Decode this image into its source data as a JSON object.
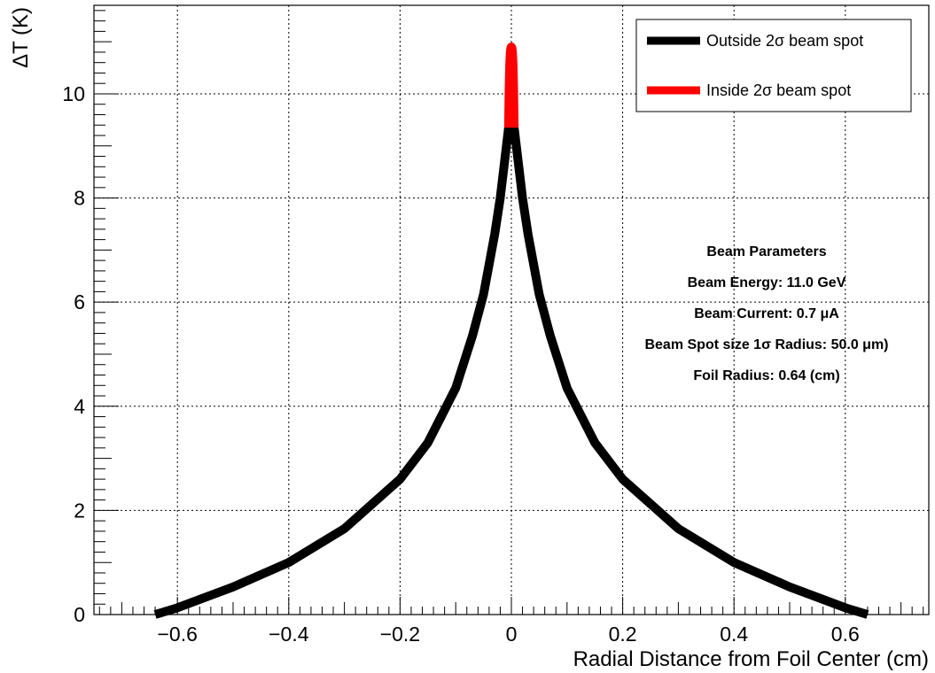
{
  "chart_data": {
    "type": "line",
    "xlabel": "Radial Distance from Foil Center (cm)",
    "ylabel": "ΔT (K)",
    "xlim": [
      -0.75,
      0.75
    ],
    "ylim": [
      0,
      11.7
    ],
    "xticks": [
      -0.6,
      -0.4,
      -0.2,
      0,
      0.2,
      0.4,
      0.6
    ],
    "xtick_labels": [
      "−0.6",
      "−0.4",
      "−0.2",
      "0",
      "0.2",
      "0.4",
      "0.6"
    ],
    "yticks": [
      0,
      2,
      4,
      6,
      8,
      10
    ],
    "ytick_labels": [
      "0",
      "2",
      "4",
      "6",
      "8",
      "10"
    ],
    "grid": true,
    "legend_position": "top-right",
    "series": [
      {
        "name": "Outside 2σ beam spot",
        "color": "#000000",
        "x": [
          -0.64,
          -0.6,
          -0.5,
          -0.4,
          -0.3,
          -0.2,
          -0.15,
          -0.1,
          -0.07,
          -0.05,
          -0.03,
          -0.02,
          -0.01,
          -0.005,
          0.005,
          0.01,
          0.02,
          0.03,
          0.05,
          0.07,
          0.1,
          0.15,
          0.2,
          0.3,
          0.4,
          0.5,
          0.6,
          0.64
        ],
        "y": [
          0.0,
          0.13,
          0.53,
          1.0,
          1.65,
          2.6,
          3.3,
          4.35,
          5.35,
          6.15,
          7.3,
          8.0,
          8.9,
          9.35,
          9.35,
          8.9,
          8.0,
          7.3,
          6.15,
          5.35,
          4.35,
          3.3,
          2.6,
          1.65,
          1.0,
          0.53,
          0.13,
          0.0
        ]
      },
      {
        "name": "Inside 2σ beam spot",
        "color": "#ff0000",
        "x": [
          -0.005,
          -0.004,
          -0.003,
          -0.002,
          -0.001,
          0.0,
          0.001,
          0.002,
          0.003,
          0.004,
          0.005
        ],
        "y": [
          9.35,
          10.1,
          10.55,
          10.78,
          10.88,
          10.9,
          10.88,
          10.78,
          10.55,
          10.1,
          9.35
        ]
      }
    ],
    "annotation": {
      "title": "Beam Parameters",
      "lines": [
        "Beam Energy: 11.0 GeV",
        "Beam Current: 0.7 μA",
        "Beam Spot size 1σ Radius: 50.0 μm)",
        "Foil Radius: 0.64 (cm)"
      ]
    }
  }
}
